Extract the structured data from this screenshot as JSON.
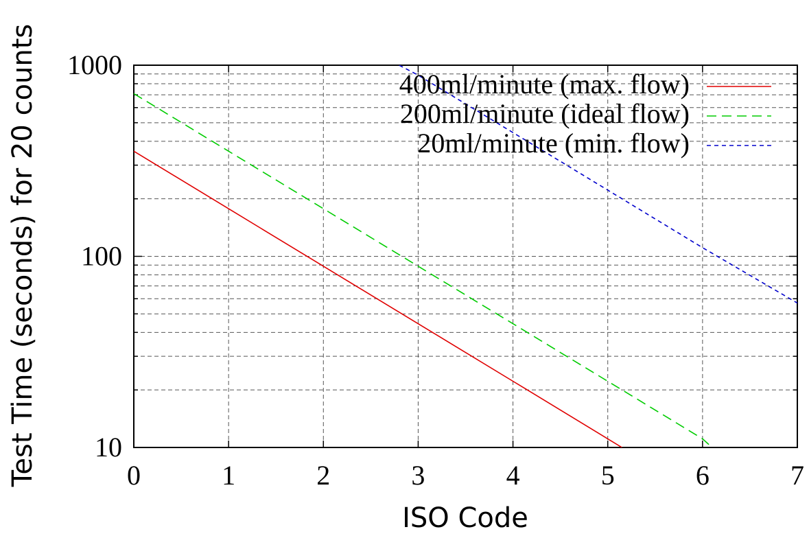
{
  "chart_data": {
    "type": "line",
    "xlabel": "ISO Code",
    "ylabel": "Test Time (seconds) for 20 counts",
    "xlim": [
      0,
      7
    ],
    "ylim": [
      10,
      1000
    ],
    "yscale": "log",
    "grid": true,
    "legend_position": "top-right",
    "x_ticks": [
      0,
      1,
      2,
      3,
      4,
      5,
      6,
      7
    ],
    "x_tick_labels": [
      "0",
      "1",
      "2",
      "3",
      "4",
      "5",
      "6",
      "7"
    ],
    "y_tick_labels": [
      "10",
      "100",
      "1000"
    ],
    "y_ticks": [
      10,
      100,
      1000
    ],
    "y_minor_ticks": [
      20,
      30,
      40,
      50,
      60,
      70,
      80,
      90,
      200,
      300,
      400,
      500,
      600,
      700,
      800,
      900
    ],
    "series": [
      {
        "name": "400ml/minute (max. flow)",
        "color": "#e00000",
        "dash": "solid",
        "x": [
          0,
          1,
          2,
          3,
          4,
          5,
          5.15
        ],
        "y": [
          355,
          177.5,
          88.8,
          44.4,
          22.2,
          11.1,
          10
        ]
      },
      {
        "name": "200ml/minute (ideal flow)",
        "color": "#00cc00",
        "dash": "long-dash",
        "x": [
          0,
          1,
          2,
          3,
          4,
          5,
          6,
          6.1
        ],
        "y": [
          710,
          355,
          177.5,
          88.8,
          44.4,
          22.2,
          11.1,
          10
        ]
      },
      {
        "name": "20ml/minute (min. flow)",
        "color": "#0000cc",
        "dash": "short-dash",
        "x": [
          2.8,
          3,
          4,
          5,
          6,
          7
        ],
        "y": [
          1000,
          887,
          444,
          222,
          111,
          57
        ]
      }
    ]
  }
}
